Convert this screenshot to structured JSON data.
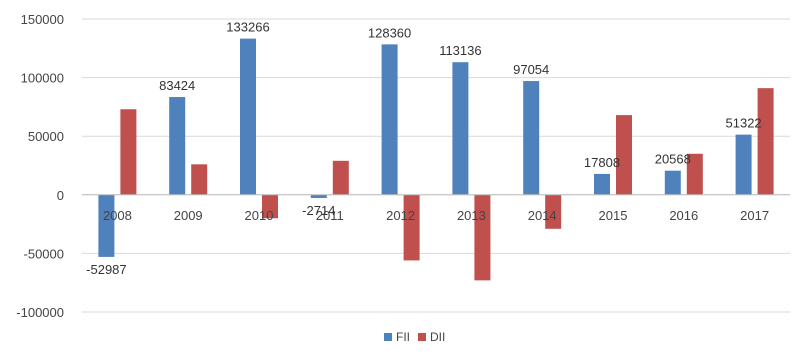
{
  "chart_data": {
    "type": "bar",
    "title": "",
    "xlabel": "",
    "ylabel": "",
    "categories": [
      "2008",
      "2009",
      "2010",
      "2011",
      "2012",
      "2013",
      "2014",
      "2015",
      "2016",
      "2017"
    ],
    "series": [
      {
        "name": "FII",
        "color": "#4f81bd",
        "values": [
          -52987,
          83424,
          133266,
          -2714,
          128360,
          113136,
          97054,
          17808,
          20568,
          51322
        ],
        "data_labels": [
          "-52987",
          "83424",
          "133266",
          "-2714",
          "128360",
          "113136",
          "97054",
          "17808",
          "20568",
          "51322"
        ]
      },
      {
        "name": "DII",
        "color": "#c0504d",
        "values": [
          73000,
          26000,
          -20000,
          29000,
          -56000,
          -73000,
          -29000,
          68000,
          35000,
          91000
        ]
      }
    ],
    "ylim": [
      -100000,
      150000
    ],
    "yticks": [
      -100000,
      -50000,
      0,
      50000,
      100000,
      150000
    ],
    "ytick_labels": [
      "-100000",
      "-50000",
      "0",
      "50000",
      "100000",
      "150000"
    ],
    "grid": true,
    "legend_position": "bottom"
  }
}
